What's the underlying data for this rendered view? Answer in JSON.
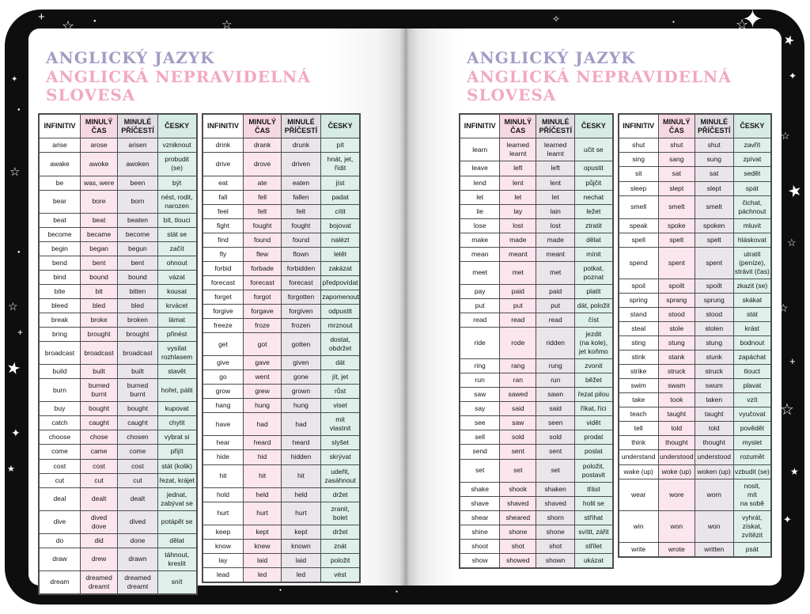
{
  "book": {
    "title_line1": "ANGLICKÝ JAZYK",
    "title_line2": "ANGLICKÁ NEPRAVIDELNÁ SLOVESA",
    "table_headers": [
      "INFINITIV",
      "MINULÝ\nČAS",
      "MINULÉ\nPŘÍČESTÍ",
      "ČESKY"
    ],
    "colors": {
      "title1": "#a29cc5",
      "title2": "#f2a8c2",
      "head_pink": "#f6d8e2",
      "head_gray": "#e2dde3",
      "head_mint": "#d6ebe4",
      "cell_pink": "#fae6ec",
      "cell_gray": "#eae5ea",
      "cell_mint": "#def0e9",
      "border": "#4d4d4d",
      "cover": "#0e0e0e"
    },
    "icons": {
      "star_filled": "★",
      "star_outline": "☆",
      "sparkle_filled": "✦",
      "sparkle_outline": "✧",
      "dot": "●",
      "plus": "+"
    }
  },
  "tables": [
    {
      "rows": [
        [
          "arise",
          "arose",
          "arisen",
          "vzniknout"
        ],
        [
          "awake",
          "awoke",
          "awoken",
          "probudit (se)"
        ],
        [
          "be",
          "was, were",
          "been",
          "být"
        ],
        [
          "bear",
          "bore",
          "born",
          "nést, rodit,\nnarozen"
        ],
        [
          "beat",
          "beat",
          "beaten",
          "bít, tlouci"
        ],
        [
          "become",
          "became",
          "become",
          "stát se"
        ],
        [
          "begin",
          "began",
          "begun",
          "začít"
        ],
        [
          "bend",
          "bent",
          "bent",
          "ohnout"
        ],
        [
          "bind",
          "bound",
          "bound",
          "vázat"
        ],
        [
          "bite",
          "bit",
          "bitten",
          "kousat"
        ],
        [
          "bleed",
          "bled",
          "bled",
          "krvácet"
        ],
        [
          "break",
          "broke",
          "broken",
          "lámat"
        ],
        [
          "bring",
          "brought",
          "brought",
          "přinést"
        ],
        [
          "broadcast",
          "broadcast",
          "broadcast",
          "vysílat\nrozhlasem"
        ],
        [
          "build",
          "built",
          "built",
          "stavět"
        ],
        [
          "burn",
          "burned\nburnt",
          "burned\nburnt",
          "hořet, pálit"
        ],
        [
          "buy",
          "bought",
          "bought",
          "kupovat"
        ],
        [
          "catch",
          "caught",
          "caught",
          "chytit"
        ],
        [
          "choose",
          "chose",
          "chosen",
          "vybrat si"
        ],
        [
          "come",
          "came",
          "come",
          "přijít"
        ],
        [
          "cost",
          "cost",
          "cost",
          "stát (kolik)"
        ],
        [
          "cut",
          "cut",
          "cut",
          "řezat, krájet"
        ],
        [
          "deal",
          "dealt",
          "dealt",
          "jednat,\nzabývat se"
        ],
        [
          "dive",
          "dived\ndove",
          "dived",
          "potápět se"
        ],
        [
          "do",
          "did",
          "done",
          "dělat"
        ],
        [
          "draw",
          "drew",
          "drawn",
          "táhnout, kreslit"
        ],
        [
          "dream",
          "dreamed\ndreamt",
          "dreamed\ndreamt",
          "snít"
        ]
      ]
    },
    {
      "rows": [
        [
          "drink",
          "drank",
          "drunk",
          "pít"
        ],
        [
          "drive",
          "drove",
          "driven",
          "hnát, jet, řídit"
        ],
        [
          "eat",
          "ate",
          "eaten",
          "jíst"
        ],
        [
          "fall",
          "fell",
          "fallen",
          "padat"
        ],
        [
          "feel",
          "felt",
          "felt",
          "cítit"
        ],
        [
          "fight",
          "fought",
          "fought",
          "bojovat"
        ],
        [
          "find",
          "found",
          "found",
          "nalézt"
        ],
        [
          "fly",
          "flew",
          "flown",
          "letět"
        ],
        [
          "forbid",
          "forbade",
          "forbidden",
          "zakázat"
        ],
        [
          "forecast",
          "forecast",
          "forecast",
          "předpovídat"
        ],
        [
          "forget",
          "forgot",
          "forgotten",
          "zapomenout"
        ],
        [
          "forgive",
          "forgave",
          "forgiven",
          "odpustit"
        ],
        [
          "freeze",
          "froze",
          "frozen",
          "mrznout"
        ],
        [
          "get",
          "got",
          "gotten",
          "dostat, obdržet"
        ],
        [
          "give",
          "gave",
          "given",
          "dát"
        ],
        [
          "go",
          "went",
          "gone",
          "jít, jet"
        ],
        [
          "grow",
          "grew",
          "grown",
          "růst"
        ],
        [
          "hang",
          "hung",
          "hung",
          "viset"
        ],
        [
          "have",
          "had",
          "had",
          "mít\nvlastnit"
        ],
        [
          "hear",
          "heard",
          "heard",
          "slyšet"
        ],
        [
          "hide",
          "hid",
          "hidden",
          "skrývat"
        ],
        [
          "hit",
          "hit",
          "hit",
          "udeřit,\nzasáhnout"
        ],
        [
          "hold",
          "held",
          "held",
          "držet"
        ],
        [
          "hurt",
          "hurt",
          "hurt",
          "zranit,\nbolet"
        ],
        [
          "keep",
          "kept",
          "kept",
          "držet"
        ],
        [
          "know",
          "knew",
          "known",
          "znát"
        ],
        [
          "lay",
          "laid",
          "laid",
          "položit"
        ],
        [
          "lead",
          "led",
          "led",
          "vést"
        ]
      ]
    },
    {
      "rows": [
        [
          "learn",
          "learned\nlearnt",
          "learned\nlearnt",
          "učit se"
        ],
        [
          "leave",
          "left",
          "left",
          "opustit"
        ],
        [
          "lend",
          "lent",
          "lent",
          "půjčit"
        ],
        [
          "let",
          "let",
          "let",
          "nechat"
        ],
        [
          "lie",
          "lay",
          "lain",
          "ležet"
        ],
        [
          "lose",
          "lost",
          "lost",
          "ztratit"
        ],
        [
          "make",
          "made",
          "made",
          "dělat"
        ],
        [
          "mean",
          "meant",
          "meant",
          "mínit"
        ],
        [
          "meet",
          "met",
          "met",
          "potkat, poznat"
        ],
        [
          "pay",
          "paid",
          "paid",
          "platit"
        ],
        [
          "put",
          "put",
          "put",
          "dát, položit"
        ],
        [
          "read",
          "read",
          "read",
          "číst"
        ],
        [
          "ride",
          "rode",
          "ridden",
          "jezdit\n(na kole),\njet koňmo"
        ],
        [
          "ring",
          "rang",
          "rung",
          "zvonit"
        ],
        [
          "run",
          "ran",
          "run",
          "běžet"
        ],
        [
          "saw",
          "sawed",
          "sawn",
          "řezat pilou"
        ],
        [
          "say",
          "said",
          "said",
          "říkat, říci"
        ],
        [
          "see",
          "saw",
          "seen",
          "vidět"
        ],
        [
          "sell",
          "sold",
          "sold",
          "prodat"
        ],
        [
          "send",
          "sent",
          "sent",
          "poslat"
        ],
        [
          "set",
          "set",
          "set",
          "položit,\npostavit"
        ],
        [
          "shake",
          "shook",
          "shaken",
          "třást"
        ],
        [
          "shave",
          "shaved",
          "shaved",
          "holit se"
        ],
        [
          "shear",
          "sheared",
          "shorn",
          "stříhat"
        ],
        [
          "shine",
          "shone",
          "shone",
          "svítit, zářit"
        ],
        [
          "shoot",
          "shot",
          "shot",
          "střílet"
        ],
        [
          "show",
          "showed",
          "shown",
          "ukázat"
        ]
      ]
    },
    {
      "rows": [
        [
          "shut",
          "shut",
          "shut",
          "zavřít"
        ],
        [
          "sing",
          "sang",
          "sung",
          "zpívat"
        ],
        [
          "sit",
          "sat",
          "sat",
          "sedět"
        ],
        [
          "sleep",
          "slept",
          "slept",
          "spát"
        ],
        [
          "smell",
          "smelt",
          "smelt",
          "čichat,\npáchnout"
        ],
        [
          "speak",
          "spoke",
          "spoken",
          "mluvit"
        ],
        [
          "spell",
          "spelt",
          "spelt",
          "hláskovat"
        ],
        [
          "spend",
          "spent",
          "spent",
          "utratit\n(peníze),\nstrávit (čas)"
        ],
        [
          "spoil",
          "spoilt",
          "spoilt",
          "zkazit (se)"
        ],
        [
          "spring",
          "sprang",
          "sprung",
          "skákat"
        ],
        [
          "stand",
          "stood",
          "stood",
          "stát"
        ],
        [
          "steal",
          "stole",
          "stolen",
          "krást"
        ],
        [
          "sting",
          "stung",
          "stung",
          "bodnout"
        ],
        [
          "stink",
          "stank",
          "stunk",
          "zapáchat"
        ],
        [
          "strike",
          "struck",
          "struck",
          "tlouct"
        ],
        [
          "swim",
          "swam",
          "swum",
          "plavat"
        ],
        [
          "take",
          "took",
          "taken",
          "vzít"
        ],
        [
          "teach",
          "taught",
          "taught",
          "vyučovat"
        ],
        [
          "tell",
          "told",
          "told",
          "povědět"
        ],
        [
          "think",
          "thought",
          "thought",
          "myslet"
        ],
        [
          "understand",
          "understood",
          "understood",
          "rozumět"
        ],
        [
          "wake (up)",
          "woke (up)",
          "woken (up)",
          "vzbudit (se)"
        ],
        [
          "wear",
          "wore",
          "worn",
          "nosit,\nmít\nna sobě"
        ],
        [
          "win",
          "won",
          "won",
          "vyhrát, získat,\nzvítězit"
        ],
        [
          "write",
          "wrote",
          "written",
          "psát"
        ]
      ]
    }
  ]
}
